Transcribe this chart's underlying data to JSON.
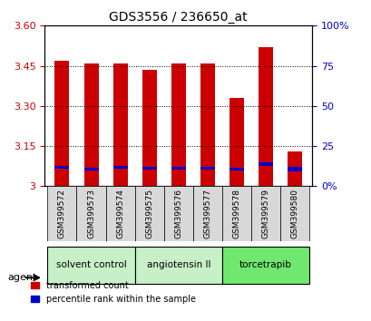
{
  "title": "GDS3556 / 236650_at",
  "samples": [
    "GSM399572",
    "GSM399573",
    "GSM399574",
    "GSM399575",
    "GSM399576",
    "GSM399577",
    "GSM399578",
    "GSM399579",
    "GSM399580"
  ],
  "red_values": [
    3.47,
    3.46,
    3.46,
    3.435,
    3.46,
    3.46,
    3.33,
    3.52,
    3.13
  ],
  "blue_values": [
    3.065,
    3.06,
    3.065,
    3.062,
    3.062,
    3.062,
    3.06,
    3.075,
    3.055
  ],
  "blue_heights": [
    0.012,
    0.01,
    0.012,
    0.01,
    0.01,
    0.01,
    0.01,
    0.014,
    0.016
  ],
  "y_min": 3.0,
  "y_max": 3.6,
  "y_ticks": [
    3.0,
    3.15,
    3.3,
    3.45,
    3.6
  ],
  "right_y_ticks": [
    0,
    25,
    50,
    75,
    100
  ],
  "right_y_labels": [
    "0%",
    "25",
    "50",
    "75",
    "100%"
  ],
  "groups": [
    {
      "label": "solvent control",
      "start": 0,
      "end": 3,
      "color": "#c8f0c8"
    },
    {
      "label": "angiotensin II",
      "start": 3,
      "end": 6,
      "color": "#c8f0c8"
    },
    {
      "label": "torcetrapib",
      "start": 6,
      "end": 9,
      "color": "#70e870"
    }
  ],
  "bar_width": 0.5,
  "bar_color_red": "#cc0000",
  "bar_color_blue": "#0000cc",
  "grid_color": "#000000",
  "bg_color": "#ffffff",
  "plot_bg": "#ffffff",
  "label_color_left": "#cc0000",
  "label_color_right": "#0000cc",
  "agent_label": "agent",
  "legend_red": "transformed count",
  "legend_blue": "percentile rank within the sample"
}
